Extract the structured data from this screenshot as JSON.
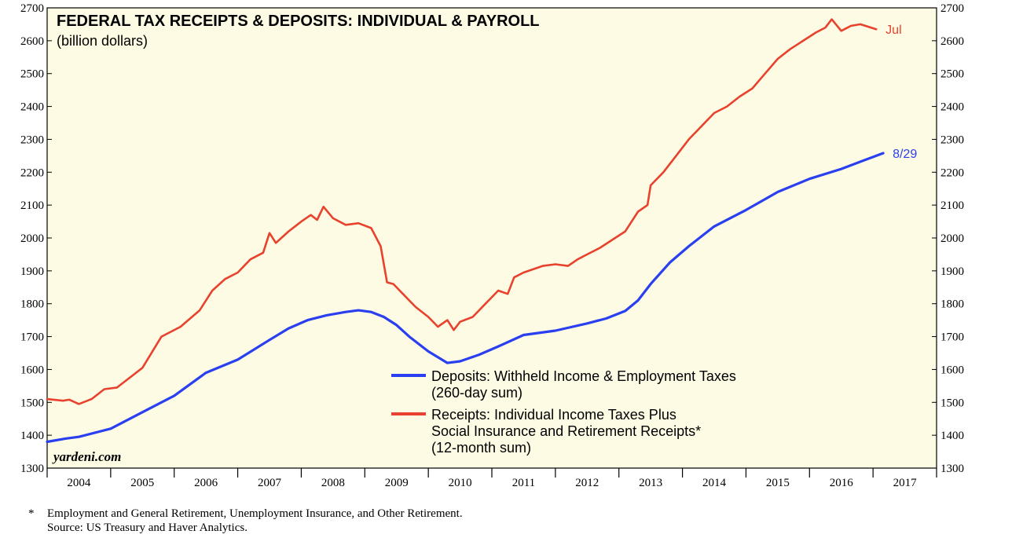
{
  "chart_data": {
    "type": "line",
    "title": "FEDERAL TAX RECEIPTS & DEPOSITS: INDIVIDUAL & PAYROLL",
    "subtitle": "(billion dollars)",
    "ylim": [
      1300,
      2700
    ],
    "yticks": [
      1300,
      1400,
      1500,
      1600,
      1700,
      1800,
      1900,
      2000,
      2100,
      2200,
      2300,
      2400,
      2500,
      2600,
      2700
    ],
    "xlim": [
      2003.5,
      2017.5
    ],
    "years": [
      "2004",
      "2005",
      "2006",
      "2007",
      "2008",
      "2009",
      "2010",
      "2011",
      "2012",
      "2013",
      "2014",
      "2015",
      "2016",
      "2017"
    ],
    "brand": "yardeni.com",
    "series": [
      {
        "name": "Deposits",
        "legend_lines": [
          "Deposits: Withheld Income & Employment Taxes",
          "(260-day sum)"
        ],
        "color": "#2a3ff0",
        "end_label": "8/29",
        "x": [
          2003.5,
          2003.8,
          2004.0,
          2004.5,
          2005.0,
          2005.5,
          2006.0,
          2006.5,
          2007.0,
          2007.3,
          2007.6,
          2007.9,
          2008.2,
          2008.4,
          2008.6,
          2008.8,
          2009.0,
          2009.2,
          2009.5,
          2009.8,
          2010.0,
          2010.3,
          2010.6,
          2011.0,
          2011.5,
          2012.0,
          2012.3,
          2012.6,
          2012.8,
          2013.0,
          2013.3,
          2013.6,
          2014.0,
          2014.5,
          2015.0,
          2015.5,
          2016.0,
          2016.3,
          2016.66
        ],
        "y": [
          1380,
          1390,
          1395,
          1420,
          1470,
          1520,
          1590,
          1630,
          1690,
          1725,
          1750,
          1765,
          1775,
          1780,
          1775,
          1760,
          1735,
          1700,
          1655,
          1620,
          1625,
          1645,
          1670,
          1705,
          1718,
          1740,
          1755,
          1778,
          1810,
          1860,
          1925,
          1975,
          2035,
          2085,
          2140,
          2180,
          2210,
          2232,
          2258
        ]
      },
      {
        "name": "Receipts",
        "legend_lines": [
          "Receipts: Individual Income Taxes Plus",
          "Social Insurance and Retirement Receipts*",
          "(12-month sum)"
        ],
        "color": "#e8422e",
        "end_label": "Jul",
        "x": [
          2003.5,
          2003.75,
          2003.85,
          2004.0,
          2004.2,
          2004.4,
          2004.6,
          2004.8,
          2005.0,
          2005.3,
          2005.6,
          2005.9,
          2006.1,
          2006.3,
          2006.5,
          2006.7,
          2006.9,
          2007.0,
          2007.1,
          2007.3,
          2007.5,
          2007.65,
          2007.75,
          2007.85,
          2008.0,
          2008.2,
          2008.4,
          2008.6,
          2008.75,
          2008.85,
          2008.95,
          2009.1,
          2009.3,
          2009.5,
          2009.65,
          2009.8,
          2009.9,
          2010.0,
          2010.2,
          2010.4,
          2010.6,
          2010.75,
          2010.85,
          2011.0,
          2011.3,
          2011.5,
          2011.7,
          2011.85,
          2012.0,
          2012.2,
          2012.4,
          2012.6,
          2012.8,
          2012.95,
          2013.0,
          2013.2,
          2013.4,
          2013.6,
          2013.8,
          2014.0,
          2014.2,
          2014.4,
          2014.6,
          2014.8,
          2015.0,
          2015.2,
          2015.4,
          2015.6,
          2015.75,
          2015.85,
          2016.0,
          2016.15,
          2016.3,
          2016.55
        ],
        "y": [
          1510,
          1505,
          1508,
          1495,
          1510,
          1540,
          1545,
          1575,
          1605,
          1700,
          1730,
          1780,
          1840,
          1875,
          1895,
          1935,
          1955,
          2015,
          1985,
          2020,
          2050,
          2070,
          2055,
          2095,
          2060,
          2040,
          2045,
          2030,
          1975,
          1865,
          1860,
          1830,
          1790,
          1760,
          1730,
          1750,
          1720,
          1745,
          1760,
          1800,
          1840,
          1830,
          1880,
          1895,
          1915,
          1920,
          1915,
          1935,
          1950,
          1970,
          1995,
          2020,
          2080,
          2100,
          2160,
          2200,
          2250,
          2300,
          2340,
          2380,
          2400,
          2430,
          2455,
          2500,
          2545,
          2575,
          2600,
          2625,
          2640,
          2665,
          2630,
          2645,
          2650,
          2635
        ]
      }
    ]
  },
  "footnote": {
    "marker": "*",
    "text": "Employment and General Retirement, Unemployment Insurance, and Other Retirement.",
    "source": "Source: US Treasury and Haver Analytics."
  }
}
